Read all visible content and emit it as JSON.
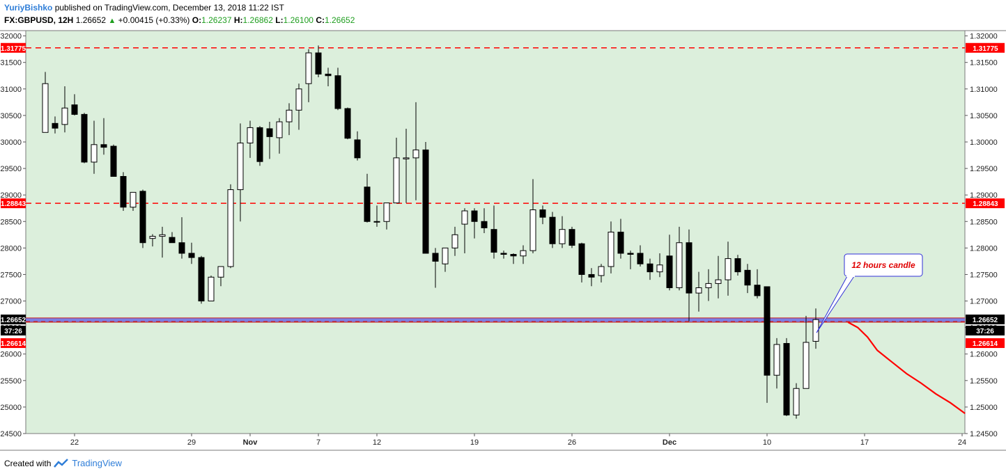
{
  "header": {
    "author": "YuriyBishko",
    "published_text": "published on TradingView.com, December 13, 2018 11:22 IST",
    "symbol": "FX:GBPUSD, 12H",
    "last": "1.26652",
    "change": "+0.00415 (+0.33%)",
    "o_label": "O:",
    "o_value": "1.26237",
    "h_label": "H:",
    "h_value": "1.26862",
    "l_label": "L:",
    "l_value": "1.26100",
    "c_label": "C:",
    "c_value": "1.26652"
  },
  "footer": {
    "created_with": "Created with",
    "brand": "TradingView"
  },
  "colors": {
    "background": "#dcefdc",
    "level_line": "#ff0000",
    "zone_fill": "#5b5be8",
    "zone_line": "#c81e1e",
    "projection": "#ff0000",
    "callout_text": "#e00000",
    "callout_border": "#2f2fd8",
    "label_red": "#ff0000",
    "label_black": "#000000"
  },
  "chart_data": {
    "type": "candlestick",
    "ylim": [
      1.245,
      1.321
    ],
    "y_ticks": [
      "1.32000",
      "1.31500",
      "1.31000",
      "1.30500",
      "1.30000",
      "1.29500",
      "1.29000",
      "1.28500",
      "1.28000",
      "1.27500",
      "1.27000",
      "1.26500",
      "1.26000",
      "1.25500",
      "1.25000",
      "1.24500"
    ],
    "x_tick_labels": [
      {
        "label": "22",
        "bar": 3
      },
      {
        "label": "29",
        "bar": 15
      },
      {
        "label": "Nov",
        "bar": 21
      },
      {
        "label": "7",
        "bar": 28
      },
      {
        "label": "12",
        "bar": 34
      },
      {
        "label": "19",
        "bar": 44
      },
      {
        "label": "26",
        "bar": 54
      },
      {
        "label": "Dec",
        "bar": 64
      },
      {
        "label": "10",
        "bar": 74
      },
      {
        "label": "17",
        "bar": 84
      },
      {
        "label": "24",
        "bar": 94
      }
    ],
    "candles": [
      {
        "o": 1.3018,
        "h": 1.3132,
        "l": 1.3018,
        "c": 1.311
      },
      {
        "o": 1.3035,
        "h": 1.3048,
        "l": 1.3016,
        "c": 1.3026
      },
      {
        "o": 1.3033,
        "h": 1.3105,
        "l": 1.3018,
        "c": 1.3064
      },
      {
        "o": 1.307,
        "h": 1.309,
        "l": 1.305,
        "c": 1.3052
      },
      {
        "o": 1.3052,
        "h": 1.3055,
        "l": 1.296,
        "c": 1.2962
      },
      {
        "o": 1.2962,
        "h": 1.304,
        "l": 1.294,
        "c": 1.2995
      },
      {
        "o": 1.2995,
        "h": 1.3045,
        "l": 1.2976,
        "c": 1.299
      },
      {
        "o": 1.2992,
        "h": 1.2995,
        "l": 1.2935,
        "c": 1.2935
      },
      {
        "o": 1.2935,
        "h": 1.2943,
        "l": 1.287,
        "c": 1.2877
      },
      {
        "o": 1.2877,
        "h": 1.2905,
        "l": 1.287,
        "c": 1.2905
      },
      {
        "o": 1.2907,
        "h": 1.291,
        "l": 1.28,
        "c": 1.281
      },
      {
        "o": 1.2818,
        "h": 1.2826,
        "l": 1.2803,
        "c": 1.2822
      },
      {
        "o": 1.2822,
        "h": 1.284,
        "l": 1.2782,
        "c": 1.2825
      },
      {
        "o": 1.282,
        "h": 1.283,
        "l": 1.281,
        "c": 1.281
      },
      {
        "o": 1.281,
        "h": 1.2858,
        "l": 1.278,
        "c": 1.279
      },
      {
        "o": 1.279,
        "h": 1.281,
        "l": 1.277,
        "c": 1.2782
      },
      {
        "o": 1.2782,
        "h": 1.2785,
        "l": 1.2695,
        "c": 1.27
      },
      {
        "o": 1.27,
        "h": 1.2748,
        "l": 1.27,
        "c": 1.2745
      },
      {
        "o": 1.2745,
        "h": 1.2765,
        "l": 1.2728,
        "c": 1.2765
      },
      {
        "o": 1.2765,
        "h": 1.292,
        "l": 1.2762,
        "c": 1.291
      },
      {
        "o": 1.291,
        "h": 1.3035,
        "l": 1.285,
        "c": 1.2998
      },
      {
        "o": 1.2998,
        "h": 1.304,
        "l": 1.297,
        "c": 1.3027
      },
      {
        "o": 1.3027,
        "h": 1.303,
        "l": 1.2955,
        "c": 1.2963
      },
      {
        "o": 1.3025,
        "h": 1.3038,
        "l": 1.2968,
        "c": 1.301
      },
      {
        "o": 1.3008,
        "h": 1.3045,
        "l": 1.2978,
        "c": 1.3038
      },
      {
        "o": 1.3038,
        "h": 1.3073,
        "l": 1.3013,
        "c": 1.306
      },
      {
        "o": 1.306,
        "h": 1.311,
        "l": 1.3023,
        "c": 1.31
      },
      {
        "o": 1.311,
        "h": 1.3175,
        "l": 1.3075,
        "c": 1.3168
      },
      {
        "o": 1.3168,
        "h": 1.3182,
        "l": 1.3122,
        "c": 1.3128
      },
      {
        "o": 1.3128,
        "h": 1.314,
        "l": 1.3105,
        "c": 1.3125
      },
      {
        "o": 1.3125,
        "h": 1.314,
        "l": 1.306,
        "c": 1.3063
      },
      {
        "o": 1.3063,
        "h": 1.3065,
        "l": 1.3005,
        "c": 1.3007
      },
      {
        "o": 1.3004,
        "h": 1.302,
        "l": 1.2965,
        "c": 1.297
      },
      {
        "o": 1.2915,
        "h": 1.294,
        "l": 1.2848,
        "c": 1.285
      },
      {
        "o": 1.285,
        "h": 1.288,
        "l": 1.284,
        "c": 1.285
      },
      {
        "o": 1.285,
        "h": 1.2885,
        "l": 1.2835,
        "c": 1.2885
      },
      {
        "o": 1.2885,
        "h": 1.3008,
        "l": 1.2885,
        "c": 1.297
      },
      {
        "o": 1.2968,
        "h": 1.3025,
        "l": 1.2885,
        "c": 1.297
      },
      {
        "o": 1.297,
        "h": 1.3075,
        "l": 1.289,
        "c": 1.2985
      },
      {
        "o": 1.2985,
        "h": 1.3,
        "l": 1.279,
        "c": 1.279
      },
      {
        "o": 1.279,
        "h": 1.28,
        "l": 1.2725,
        "c": 1.2775
      },
      {
        "o": 1.277,
        "h": 1.28,
        "l": 1.2755,
        "c": 1.28
      },
      {
        "o": 1.28,
        "h": 1.284,
        "l": 1.2785,
        "c": 1.2825
      },
      {
        "o": 1.2845,
        "h": 1.2875,
        "l": 1.279,
        "c": 1.287
      },
      {
        "o": 1.287,
        "h": 1.2875,
        "l": 1.2818,
        "c": 1.285
      },
      {
        "o": 1.285,
        "h": 1.2875,
        "l": 1.2828,
        "c": 1.2838
      },
      {
        "o": 1.2835,
        "h": 1.288,
        "l": 1.278,
        "c": 1.2792
      },
      {
        "o": 1.279,
        "h": 1.2795,
        "l": 1.278,
        "c": 1.2788
      },
      {
        "o": 1.2788,
        "h": 1.279,
        "l": 1.277,
        "c": 1.2785
      },
      {
        "o": 1.2785,
        "h": 1.2805,
        "l": 1.277,
        "c": 1.2795
      },
      {
        "o": 1.2795,
        "h": 1.293,
        "l": 1.279,
        "c": 1.2872
      },
      {
        "o": 1.2872,
        "h": 1.288,
        "l": 1.2845,
        "c": 1.2858
      },
      {
        "o": 1.2858,
        "h": 1.2868,
        "l": 1.28,
        "c": 1.2808
      },
      {
        "o": 1.2808,
        "h": 1.286,
        "l": 1.28,
        "c": 1.2835
      },
      {
        "o": 1.2835,
        "h": 1.284,
        "l": 1.28,
        "c": 1.2805
      },
      {
        "o": 1.2808,
        "h": 1.281,
        "l": 1.2735,
        "c": 1.275
      },
      {
        "o": 1.275,
        "h": 1.2762,
        "l": 1.2728,
        "c": 1.2745
      },
      {
        "o": 1.2748,
        "h": 1.277,
        "l": 1.2735,
        "c": 1.2765
      },
      {
        "o": 1.2765,
        "h": 1.285,
        "l": 1.2752,
        "c": 1.283
      },
      {
        "o": 1.283,
        "h": 1.2855,
        "l": 1.278,
        "c": 1.279
      },
      {
        "o": 1.279,
        "h": 1.2795,
        "l": 1.276,
        "c": 1.2788
      },
      {
        "o": 1.279,
        "h": 1.2805,
        "l": 1.2765,
        "c": 1.277
      },
      {
        "o": 1.277,
        "h": 1.278,
        "l": 1.274,
        "c": 1.2755
      },
      {
        "o": 1.2755,
        "h": 1.279,
        "l": 1.2745,
        "c": 1.2768
      },
      {
        "o": 1.2785,
        "h": 1.2825,
        "l": 1.272,
        "c": 1.2725
      },
      {
        "o": 1.2725,
        "h": 1.284,
        "l": 1.272,
        "c": 1.281
      },
      {
        "o": 1.281,
        "h": 1.2835,
        "l": 1.2662,
        "c": 1.2715
      },
      {
        "o": 1.2715,
        "h": 1.2755,
        "l": 1.268,
        "c": 1.2725
      },
      {
        "o": 1.2725,
        "h": 1.276,
        "l": 1.27,
        "c": 1.2733
      },
      {
        "o": 1.2733,
        "h": 1.2785,
        "l": 1.2705,
        "c": 1.274
      },
      {
        "o": 1.274,
        "h": 1.2812,
        "l": 1.271,
        "c": 1.278
      },
      {
        "o": 1.278,
        "h": 1.2787,
        "l": 1.2748,
        "c": 1.2755
      },
      {
        "o": 1.2758,
        "h": 1.277,
        "l": 1.2715,
        "c": 1.273
      },
      {
        "o": 1.273,
        "h": 1.276,
        "l": 1.2705,
        "c": 1.271
      },
      {
        "o": 1.2727,
        "h": 1.2727,
        "l": 1.2508,
        "c": 1.256
      },
      {
        "o": 1.256,
        "h": 1.263,
        "l": 1.2535,
        "c": 1.2618
      },
      {
        "o": 1.262,
        "h": 1.263,
        "l": 1.2483,
        "c": 1.2485
      },
      {
        "o": 1.2485,
        "h": 1.2545,
        "l": 1.2478,
        "c": 1.2535
      },
      {
        "o": 1.2535,
        "h": 1.2672,
        "l": 1.2535,
        "c": 1.2622
      },
      {
        "o": 1.2624,
        "h": 1.2686,
        "l": 1.261,
        "c": 1.2665
      }
    ],
    "horizontal_levels": [
      {
        "value": 1.31775,
        "label": "1.31775"
      },
      {
        "value": 1.28843,
        "label": "1.28843"
      }
    ],
    "zone": {
      "from": 1.266,
      "to": 1.2668,
      "mid": 1.26614
    },
    "price_labels": {
      "last": "1.26652",
      "countdown": "37:26",
      "zone": "1.26614"
    },
    "projection": [
      {
        "bar": 82.3,
        "y": 1.266
      },
      {
        "bar": 83.3,
        "y": 1.265
      },
      {
        "bar": 84.3,
        "y": 1.2632
      },
      {
        "bar": 85.3,
        "y": 1.2607
      },
      {
        "bar": 86.8,
        "y": 1.2585
      },
      {
        "bar": 88.3,
        "y": 1.2563
      },
      {
        "bar": 89.8,
        "y": 1.2545
      },
      {
        "bar": 91.3,
        "y": 1.2525
      },
      {
        "bar": 92.8,
        "y": 1.2508
      },
      {
        "bar": 94.3,
        "y": 1.2488
      }
    ],
    "annotation": {
      "text": "12 hours candle",
      "anchor_bar": 79,
      "anchor_y": 1.264
    }
  }
}
